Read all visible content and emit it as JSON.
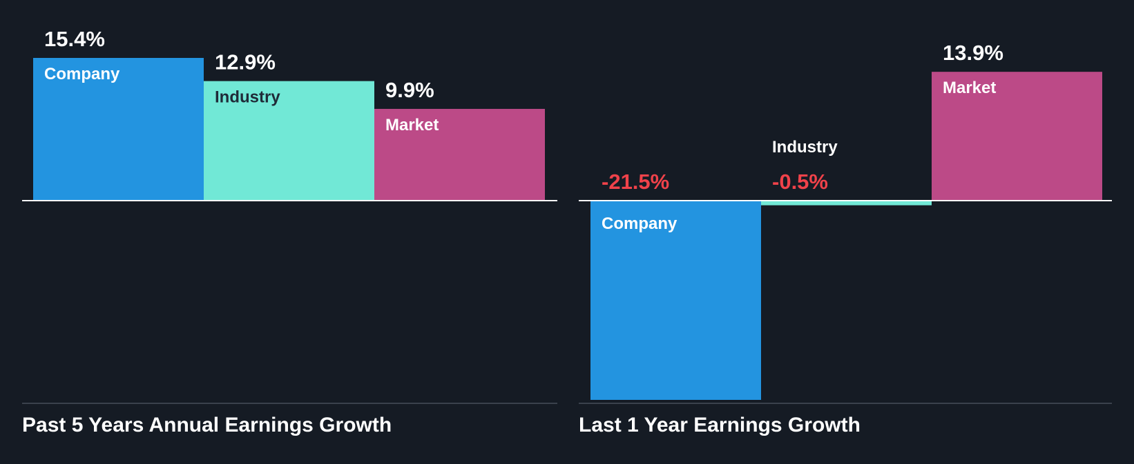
{
  "colors": {
    "background": "#151b24",
    "company": "#2394e0",
    "industry": "#71e8d6",
    "market": "#bc4a87",
    "positive_text": "#ffffff",
    "negative_text": "#f0424a",
    "baseline": "#ffffff",
    "bottom_rule": "#3a414c"
  },
  "chart_data": [
    {
      "type": "bar",
      "title": "Past 5 Years Annual Earnings Growth",
      "categories": [
        "Company",
        "Industry",
        "Market"
      ],
      "values": [
        15.4,
        12.9,
        9.9
      ],
      "value_labels": [
        "15.4%",
        "12.9%",
        "9.9%"
      ],
      "unit": "%",
      "ylim": [
        -21.5,
        15.4
      ],
      "grid": false,
      "legend": "none"
    },
    {
      "type": "bar",
      "title": "Last 1 Year Earnings Growth",
      "categories": [
        "Company",
        "Industry",
        "Market"
      ],
      "values": [
        -21.5,
        -0.5,
        13.9
      ],
      "value_labels": [
        "-21.5%",
        "-0.5%",
        "13.9%"
      ],
      "unit": "%",
      "ylim": [
        -21.5,
        15.4
      ],
      "grid": false,
      "legend": "none"
    }
  ]
}
